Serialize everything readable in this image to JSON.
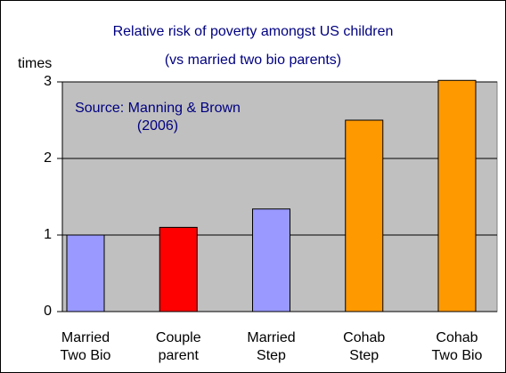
{
  "chart_data": {
    "type": "bar",
    "title": "Relative risk of poverty amongst US children",
    "subtitle": "(vs married two bio parents)",
    "y_label": "times",
    "annotation": "Source: Manning & Brown (2006)",
    "categories": [
      "Married Two Bio",
      "Couple parent",
      "Married Step",
      "Cohab Step",
      "Cohab Two Bio"
    ],
    "values": [
      1.0,
      1.1,
      1.34,
      2.5,
      3.02
    ],
    "colors": [
      "#9999ff",
      "#ff0000",
      "#9999ff",
      "#ff9900",
      "#ff9900"
    ],
    "ylim": [
      0,
      3
    ],
    "yticks": [
      0,
      1,
      2,
      3
    ],
    "grid": true
  }
}
